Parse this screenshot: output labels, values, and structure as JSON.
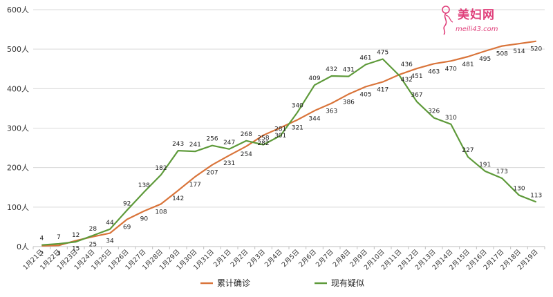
{
  "chart_data": {
    "type": "line",
    "title": "",
    "xlabel": "",
    "ylabel": "",
    "ylim": [
      0,
      600
    ],
    "y_ticks": [
      "0人",
      "100人",
      "200人",
      "300人",
      "400人",
      "500人",
      "600人"
    ],
    "grid": true,
    "legend_position": "bottom",
    "categories": [
      "1月21日",
      "1月22日",
      "1月23日",
      "1月24日",
      "1月25日",
      "1月26日",
      "1月27日",
      "1月28日",
      "1月29日",
      "1月30日",
      "1月31日",
      "2月1日",
      "2月2日",
      "2月3日",
      "2月4日",
      "2月5日",
      "2月6日",
      "2月7日",
      "2月8日",
      "2月9日",
      "2月10日",
      "2月11日",
      "2月12日",
      "2月13日",
      "2月14日",
      "2月15日",
      "2月16日",
      "2月17日",
      "2月18日",
      "2月19日"
    ],
    "series": [
      {
        "name": "累计确诊",
        "color": "#d9743a",
        "values": [
          2,
          3,
          15,
          25,
          34,
          69,
          90,
          108,
          142,
          177,
          207,
          231,
          254,
          282,
          301,
          321,
          344,
          363,
          386,
          405,
          417,
          436,
          451,
          463,
          470,
          481,
          495,
          508,
          514,
          520
        ]
      },
      {
        "name": "现有疑似",
        "color": "#5e9a3a",
        "values": [
          4,
          7,
          12,
          28,
          44,
          92,
          138,
          182,
          243,
          241,
          256,
          247,
          268,
          258,
          281,
          340,
          409,
          432,
          431,
          461,
          475,
          432,
          367,
          326,
          310,
          227,
          191,
          173,
          130,
          113
        ]
      }
    ]
  },
  "watermark": {
    "name": "美妇网",
    "url": "meili43.com"
  }
}
